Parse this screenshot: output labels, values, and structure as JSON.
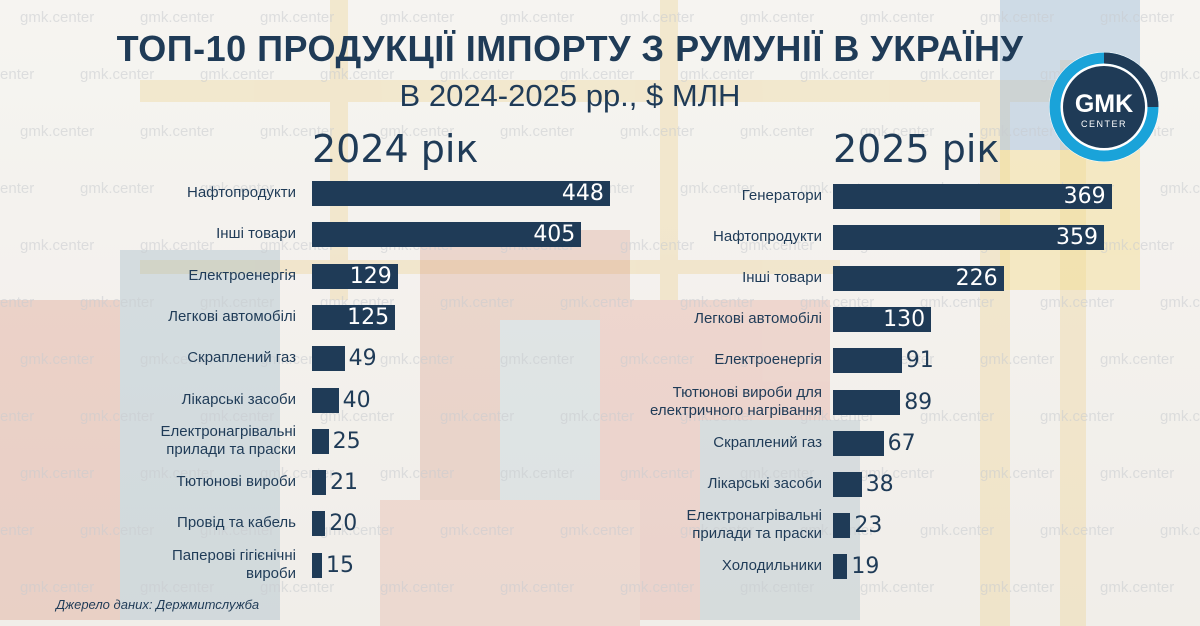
{
  "title": "ТОП-10 ПРОДУКЦІЇ ІМПОРТУ З РУМУНІЇ В УКРАЇНУ",
  "subtitle": "В 2024-2025 рр., $ МЛН",
  "watermark": "gmk.center",
  "logo": {
    "top": "GMK",
    "bottom": "CENTER",
    "ring_color": "#1aa3d9"
  },
  "source": "Джерело даних: Держмитслужба",
  "colors": {
    "bar": "#1f3b57",
    "text": "#1f3b57"
  },
  "chart_data": [
    {
      "type": "bar",
      "orientation": "horizontal",
      "title": "2024 рік",
      "categories": [
        "Нафтопродукти",
        "Інші товари",
        "Електроенергія",
        "Легкові автомобілі",
        "Скраплений газ",
        "Лікарські засоби",
        "Електронагрівальні\nприлади та праски",
        "Тютюнові вироби",
        "Провід та кабель",
        "Паперові гігієнічні\nвироби"
      ],
      "values": [
        448,
        405,
        129,
        125,
        49,
        40,
        25,
        21,
        20,
        15
      ]
    },
    {
      "type": "bar",
      "orientation": "horizontal",
      "title": "2025 рік",
      "categories": [
        "Генератори",
        "Нафтопродукти",
        "Інші товари",
        "Легкові автомобілі",
        "Електроенергія",
        "Тютюнові вироби для\nелектричного нагрівання",
        "Скраплений газ",
        "Лікарські засоби",
        "Електронагрівальні\nприлади та праски",
        "Холодильники"
      ],
      "values": [
        369,
        359,
        226,
        130,
        91,
        89,
        67,
        38,
        23,
        19
      ]
    }
  ]
}
